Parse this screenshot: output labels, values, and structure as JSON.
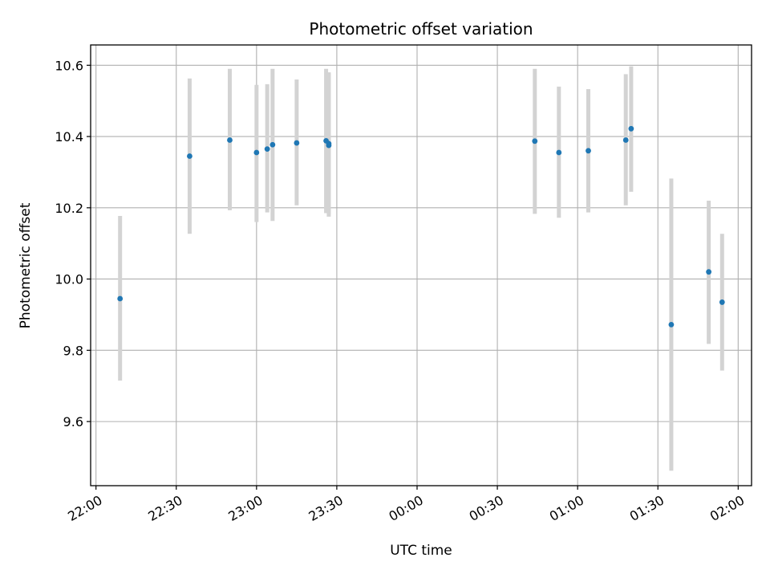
{
  "chart_data": {
    "type": "scatter",
    "title": "Photometric offset variation",
    "xlabel": "UTC time",
    "ylabel": "Photometric offset",
    "xlim": [
      "21:58",
      "02:05"
    ],
    "ylim": [
      9.42,
      10.657
    ],
    "x_ticks": [
      "22:00",
      "22:30",
      "23:00",
      "23:30",
      "00:00",
      "00:30",
      "01:00",
      "01:30",
      "02:00"
    ],
    "y_ticks": [
      9.6,
      9.8,
      10.0,
      10.2,
      10.4,
      10.6
    ],
    "y_tick_labels": [
      "9.6",
      "9.8",
      "10.0",
      "10.2",
      "10.4",
      "10.6"
    ],
    "grid": true,
    "marker_color": "#1f77b4",
    "errorbar_color": "#d3d3d3",
    "series": [
      {
        "x": [
          "22:09",
          "22:35",
          "22:50",
          "22:60",
          "23:04",
          "23:06",
          "23:15",
          "23:26",
          "23:27",
          "23:27",
          "00:44",
          "00:53",
          "01:04",
          "01:18",
          "01:20",
          "01:35",
          "01:49",
          "01:54"
        ],
        "y": [
          9.945,
          10.345,
          10.39,
          10.355,
          10.365,
          10.377,
          10.382,
          10.388,
          10.375,
          10.38,
          10.387,
          10.355,
          10.36,
          10.39,
          10.422,
          9.872,
          10.02,
          9.935
        ],
        "err_low": [
          9.715,
          10.127,
          10.193,
          10.16,
          10.187,
          10.163,
          10.207,
          10.185,
          10.175,
          10.183,
          10.183,
          10.172,
          10.187,
          10.207,
          10.245,
          9.462,
          9.818,
          9.743
        ],
        "err_high": [
          10.177,
          10.563,
          10.59,
          10.545,
          10.547,
          10.59,
          10.56,
          10.59,
          10.575,
          10.58,
          10.59,
          10.54,
          10.533,
          10.575,
          10.597,
          10.282,
          10.22,
          10.127
        ]
      }
    ]
  }
}
